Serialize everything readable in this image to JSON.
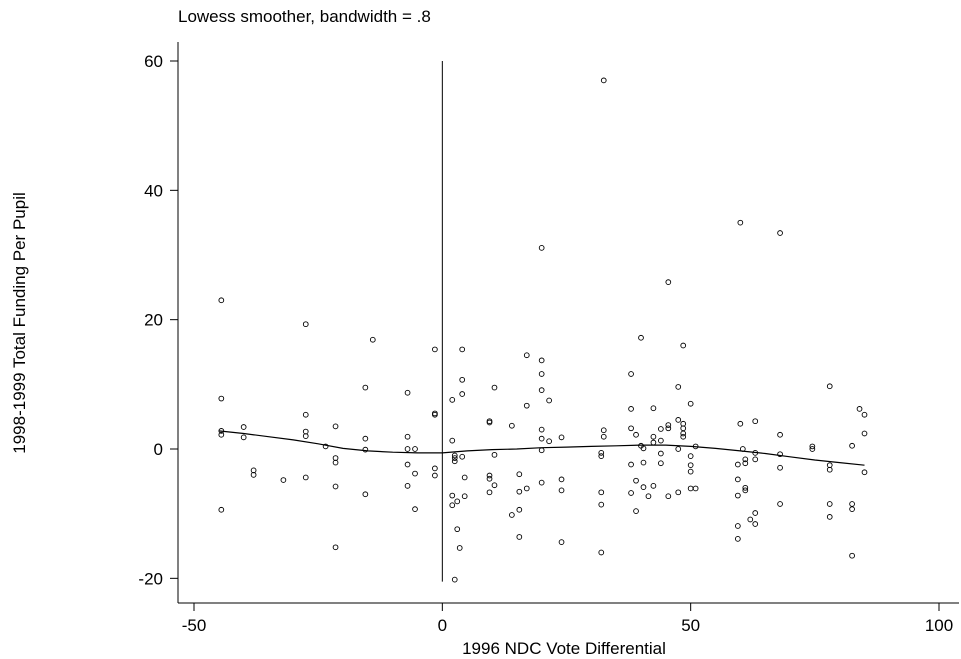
{
  "chart_data": {
    "type": "scatter",
    "title": "",
    "subtitle": "Lowess smoother, bandwidth = .8",
    "xlabel": "1996 NDC Vote Differential",
    "ylabel": "1998-1999 Total Funding Per Pupil",
    "xlim": [
      -50,
      100
    ],
    "ylim": [
      -22,
      63
    ],
    "xticks": [
      -50,
      0,
      50,
      100
    ],
    "yticks": [
      -20,
      0,
      20,
      40,
      60
    ],
    "grid": false,
    "legend": "none",
    "colors": {
      "points": "#000000",
      "line": "#000000"
    },
    "vertical_line": {
      "x": 0,
      "y_range": [
        -20.5,
        60
      ]
    },
    "lowess": {
      "x": [
        -45,
        -40,
        -35,
        -30,
        -25,
        -20,
        -15,
        -10,
        -5,
        0,
        5,
        10,
        15,
        20,
        25,
        30,
        35,
        40,
        45,
        50,
        55,
        60,
        65,
        70,
        75,
        80,
        85
      ],
      "y": [
        2.8,
        2.4,
        1.9,
        1.4,
        0.8,
        0.1,
        -0.3,
        -0.5,
        -0.6,
        -0.6,
        -0.3,
        -0.1,
        0.0,
        0.2,
        0.3,
        0.4,
        0.5,
        0.6,
        0.6,
        0.4,
        0.1,
        -0.3,
        -0.7,
        -1.2,
        -1.7,
        -2.1,
        -2.5
      ]
    },
    "points": [
      [
        -44.5,
        23.0
      ],
      [
        -44.5,
        7.8
      ],
      [
        -44.5,
        2.8
      ],
      [
        -44.5,
        2.2
      ],
      [
        -44.5,
        -9.4
      ],
      [
        -40.0,
        3.4
      ],
      [
        -40.0,
        1.8
      ],
      [
        -38.0,
        -3.3
      ],
      [
        -38.0,
        -4.0
      ],
      [
        -32.0,
        -4.8
      ],
      [
        -27.5,
        19.3
      ],
      [
        -27.5,
        5.3
      ],
      [
        -27.5,
        2.7
      ],
      [
        -27.5,
        2.0
      ],
      [
        -27.5,
        -4.4
      ],
      [
        -23.5,
        0.4
      ],
      [
        -21.5,
        3.5
      ],
      [
        -21.5,
        -1.4
      ],
      [
        -21.5,
        -2.1
      ],
      [
        -21.5,
        -5.8
      ],
      [
        -21.5,
        -15.2
      ],
      [
        -15.5,
        9.5
      ],
      [
        -15.5,
        1.6
      ],
      [
        -15.5,
        -0.1
      ],
      [
        -15.5,
        -7.0
      ],
      [
        -14.0,
        16.9
      ],
      [
        -7.0,
        8.7
      ],
      [
        -7.0,
        1.9
      ],
      [
        -7.0,
        0.0
      ],
      [
        -7.0,
        -2.4
      ],
      [
        -7.0,
        -5.7
      ],
      [
        -5.5,
        0.0
      ],
      [
        -5.5,
        -3.8
      ],
      [
        -5.5,
        -9.3
      ],
      [
        -1.5,
        15.4
      ],
      [
        -1.5,
        5.5
      ],
      [
        -1.5,
        5.3
      ],
      [
        -1.5,
        -3.0
      ],
      [
        -1.5,
        -4.1
      ],
      [
        2.0,
        7.6
      ],
      [
        2.0,
        1.3
      ],
      [
        2.5,
        -1.0
      ],
      [
        2.5,
        -1.4
      ],
      [
        2.5,
        -1.9
      ],
      [
        2.0,
        -7.2
      ],
      [
        2.0,
        -8.7
      ],
      [
        3.0,
        -8.1
      ],
      [
        2.5,
        -20.2
      ],
      [
        3.0,
        -12.4
      ],
      [
        3.5,
        -15.3
      ],
      [
        4.0,
        15.4
      ],
      [
        4.0,
        10.7
      ],
      [
        4.0,
        8.5
      ],
      [
        4.0,
        -1.2
      ],
      [
        4.5,
        -4.4
      ],
      [
        4.5,
        -7.3
      ],
      [
        9.5,
        4.3
      ],
      [
        9.5,
        4.1
      ],
      [
        9.5,
        -4.1
      ],
      [
        9.5,
        -4.6
      ],
      [
        9.5,
        -6.7
      ],
      [
        10.5,
        9.5
      ],
      [
        10.5,
        -0.9
      ],
      [
        10.5,
        -5.6
      ],
      [
        14.0,
        3.6
      ],
      [
        14.0,
        -10.2
      ],
      [
        15.5,
        -3.9
      ],
      [
        15.5,
        -6.6
      ],
      [
        15.5,
        -9.4
      ],
      [
        15.5,
        -13.6
      ],
      [
        17.0,
        14.5
      ],
      [
        17.0,
        6.7
      ],
      [
        17.0,
        -6.1
      ],
      [
        20.0,
        31.1
      ],
      [
        20.0,
        13.7
      ],
      [
        20.0,
        11.6
      ],
      [
        20.0,
        9.1
      ],
      [
        20.0,
        3.0
      ],
      [
        20.0,
        1.6
      ],
      [
        20.0,
        -0.2
      ],
      [
        20.0,
        -5.2
      ],
      [
        21.5,
        7.5
      ],
      [
        21.5,
        1.2
      ],
      [
        24.0,
        1.8
      ],
      [
        24.0,
        -4.7
      ],
      [
        24.0,
        -6.4
      ],
      [
        24.0,
        -14.4
      ],
      [
        32.5,
        57.0
      ],
      [
        32.5,
        2.9
      ],
      [
        32.5,
        1.9
      ],
      [
        32.0,
        -0.6
      ],
      [
        32.0,
        -1.1
      ],
      [
        32.0,
        -6.7
      ],
      [
        32.0,
        -8.6
      ],
      [
        32.0,
        -16.0
      ],
      [
        38.0,
        11.6
      ],
      [
        38.0,
        6.2
      ],
      [
        38.0,
        3.2
      ],
      [
        38.0,
        -2.4
      ],
      [
        38.0,
        -6.8
      ],
      [
        39.0,
        2.2
      ],
      [
        39.0,
        -4.9
      ],
      [
        39.0,
        -9.6
      ],
      [
        40.0,
        17.2
      ],
      [
        40.0,
        0.5
      ],
      [
        40.5,
        0.1
      ],
      [
        40.5,
        -2.1
      ],
      [
        40.5,
        -5.9
      ],
      [
        41.5,
        -7.3
      ],
      [
        42.5,
        6.3
      ],
      [
        42.5,
        1.9
      ],
      [
        42.5,
        1.0
      ],
      [
        42.5,
        -5.7
      ],
      [
        44.0,
        3.1
      ],
      [
        44.0,
        1.3
      ],
      [
        44.0,
        -0.7
      ],
      [
        44.0,
        -2.2
      ],
      [
        45.5,
        25.8
      ],
      [
        45.5,
        3.7
      ],
      [
        45.5,
        3.2
      ],
      [
        45.5,
        -7.3
      ],
      [
        47.5,
        9.6
      ],
      [
        47.5,
        4.5
      ],
      [
        47.5,
        0.0
      ],
      [
        47.5,
        -6.7
      ],
      [
        48.5,
        16.0
      ],
      [
        48.5,
        3.9
      ],
      [
        48.5,
        3.2
      ],
      [
        48.5,
        2.4
      ],
      [
        48.5,
        1.9
      ],
      [
        50.0,
        7.0
      ],
      [
        50.0,
        -1.1
      ],
      [
        50.0,
        -2.5
      ],
      [
        50.0,
        -3.5
      ],
      [
        50.0,
        -6.1
      ],
      [
        51.0,
        0.4
      ],
      [
        51.0,
        -6.1
      ],
      [
        60.0,
        35.0
      ],
      [
        60.0,
        3.9
      ],
      [
        59.5,
        -2.4
      ],
      [
        59.5,
        -4.7
      ],
      [
        59.5,
        -7.2
      ],
      [
        59.5,
        -11.9
      ],
      [
        59.5,
        -13.9
      ],
      [
        60.5,
        0.0
      ],
      [
        61.0,
        -1.6
      ],
      [
        61.0,
        -2.2
      ],
      [
        61.0,
        -6.0
      ],
      [
        61.0,
        -6.4
      ],
      [
        62.0,
        -10.9
      ],
      [
        63.0,
        4.3
      ],
      [
        63.0,
        -0.6
      ],
      [
        63.0,
        -1.6
      ],
      [
        63.0,
        -9.9
      ],
      [
        63.0,
        -11.6
      ],
      [
        68.0,
        33.4
      ],
      [
        68.0,
        2.2
      ],
      [
        68.0,
        -0.8
      ],
      [
        68.0,
        -2.9
      ],
      [
        68.0,
        -8.5
      ],
      [
        74.5,
        0.4
      ],
      [
        74.5,
        0.0
      ],
      [
        78.0,
        9.7
      ],
      [
        78.0,
        -2.5
      ],
      [
        78.0,
        -3.2
      ],
      [
        78.0,
        -8.5
      ],
      [
        78.0,
        -10.5
      ],
      [
        82.5,
        0.5
      ],
      [
        82.5,
        -8.5
      ],
      [
        82.5,
        -9.3
      ],
      [
        82.5,
        -16.5
      ],
      [
        84.0,
        6.2
      ],
      [
        85.0,
        5.3
      ],
      [
        85.0,
        2.4
      ],
      [
        85.0,
        -3.6
      ]
    ]
  }
}
